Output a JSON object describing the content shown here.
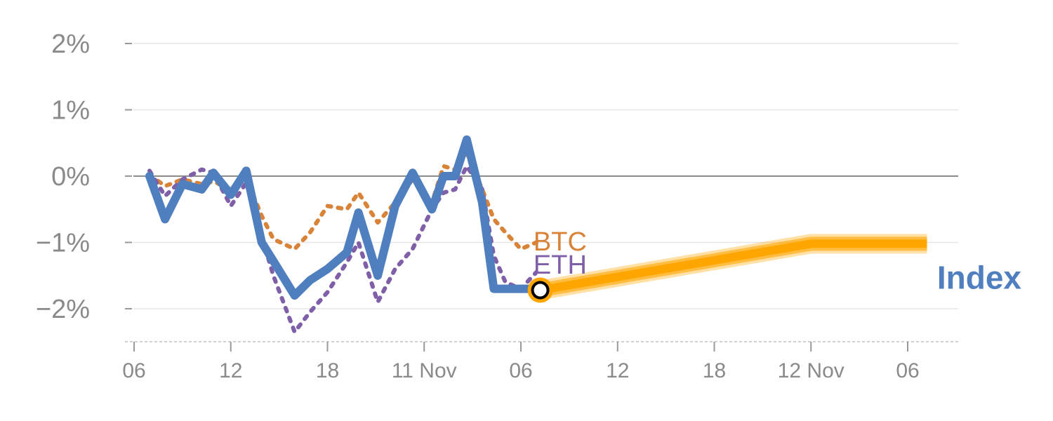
{
  "chart_data": {
    "type": "line",
    "title": "",
    "xlabel": "",
    "ylabel": "",
    "ylim": [
      -2.5,
      2.2
    ],
    "yticks": [
      {
        "value": 2,
        "label": "2%"
      },
      {
        "value": 1,
        "label": "1%"
      },
      {
        "value": 0,
        "label": "0%"
      },
      {
        "value": -1,
        "label": "−1%"
      },
      {
        "value": -2,
        "label": "−2%"
      }
    ],
    "xlim": [
      0,
      42
    ],
    "xticks": [
      {
        "value": 0,
        "label": "06"
      },
      {
        "value": 5,
        "label": "12"
      },
      {
        "value": 10,
        "label": "18"
      },
      {
        "value": 15,
        "label": "11 Nov"
      },
      {
        "value": 20,
        "label": "06"
      },
      {
        "value": 25,
        "label": "12"
      },
      {
        "value": 30,
        "label": "18"
      },
      {
        "value": 35,
        "label": "12 Nov"
      },
      {
        "value": 40,
        "label": "06"
      }
    ],
    "grid": true,
    "colors": {
      "index": "#4f7fbf",
      "btc": "#d98338",
      "eth": "#7e5fa8",
      "forecast": "#ffa500"
    },
    "series": [
      {
        "name": "Index",
        "style": "solid",
        "x": [
          0.8,
          1.6,
          2.5,
          3.5,
          4.1,
          5,
          5.8,
          6.6,
          7.2,
          8.3,
          9.1,
          10,
          11,
          11.6,
          12.6,
          13.5,
          14.4,
          15.4,
          16,
          16.6,
          17.2,
          18,
          18.6,
          19.2,
          20,
          20.8
        ],
        "values": [
          0,
          -0.65,
          -0.12,
          -0.2,
          0.05,
          -0.28,
          0.08,
          -1,
          -1.28,
          -1.8,
          -1.57,
          -1.4,
          -1.15,
          -0.55,
          -1.5,
          -0.45,
          0.05,
          -0.5,
          0,
          0,
          0.55,
          -0.4,
          -1.7,
          -1.7,
          -1.7,
          -1.7
        ]
      },
      {
        "name": "BTC",
        "style": "dotted",
        "x": [
          0.8,
          1.6,
          2.5,
          3.5,
          4.1,
          5,
          5.8,
          6.6,
          7.2,
          8.3,
          9.1,
          10,
          11,
          11.6,
          12.6,
          13.5,
          14.4,
          15.4,
          16,
          16.6,
          17.2,
          18,
          18.6,
          19.2,
          20,
          20.8
        ],
        "values": [
          0.02,
          -0.15,
          -0.05,
          -0.12,
          -0.08,
          -0.2,
          -0.03,
          -0.6,
          -0.95,
          -1.1,
          -0.85,
          -0.45,
          -0.5,
          -0.25,
          -0.7,
          -0.4,
          -0.05,
          -0.4,
          0.15,
          0.1,
          0.35,
          -0.2,
          -0.65,
          -0.85,
          -1.1,
          -1
        ]
      },
      {
        "name": "ETH",
        "style": "dotted",
        "x": [
          0.8,
          1.6,
          2.5,
          3.5,
          4.1,
          5,
          5.8,
          6.6,
          7.2,
          8.3,
          9.1,
          10,
          11,
          11.6,
          12.6,
          13.5,
          14.4,
          15.4,
          16,
          16.6,
          17.2,
          18,
          18.6,
          19.2,
          20,
          20.8
        ],
        "values": [
          0.08,
          -0.3,
          -0.05,
          0.1,
          0.05,
          -0.45,
          -0.1,
          -0.9,
          -1.5,
          -2.35,
          -2.05,
          -1.75,
          -1.3,
          -1,
          -1.9,
          -1.4,
          -1.1,
          -0.5,
          -0.25,
          -0.2,
          0.15,
          -0.2,
          -1.2,
          -1.6,
          -1.7,
          -1.45
        ]
      }
    ],
    "forecast": {
      "x": [
        21,
        35,
        41
      ],
      "values": [
        -1.72,
        -1.02,
        -1.02
      ]
    },
    "marker": {
      "x": 21,
      "value": -1.72
    },
    "labels": {
      "btc": "BTC",
      "eth": "ETH",
      "index": "Index"
    }
  }
}
